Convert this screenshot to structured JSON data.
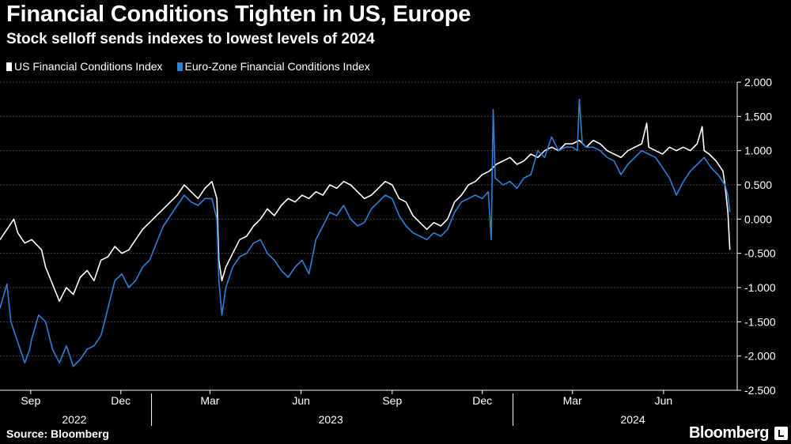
{
  "header": {
    "title": "Financial Conditions Tighten in US, Europe",
    "subtitle": "Stock selloff sends indexes to lowest levels of 2024"
  },
  "footer": {
    "source": "Source: Bloomberg",
    "brand": "Bloomberg"
  },
  "colors": {
    "background": "#000000",
    "us": "#ffffff",
    "eu": "#2e7fd8",
    "grid": "#444444"
  },
  "chart_data": {
    "type": "line",
    "title": "Financial Conditions Tighten in US, Europe",
    "subtitle": "Stock selloff sends indexes to lowest levels of 2024",
    "xlabel": "",
    "ylabel": "",
    "ylim": [
      -2.5,
      2.0
    ],
    "yticks": [
      "2.000",
      "1.500",
      "1.000",
      "0.500",
      "0.000",
      "-0.500",
      "-1.000",
      "-1.500",
      "-2.000",
      "-2.500"
    ],
    "ytick_values": [
      2.0,
      1.5,
      1.0,
      0.5,
      0.0,
      -0.5,
      -1.0,
      -1.5,
      -2.0,
      -2.5
    ],
    "xlim": [
      "2022-08-01",
      "2024-08-08"
    ],
    "month_ticks": [
      {
        "label": "Sep",
        "date": "2022-09-01"
      },
      {
        "label": "Dec",
        "date": "2022-12-01"
      },
      {
        "label": "Mar",
        "date": "2023-03-01"
      },
      {
        "label": "Jun",
        "date": "2023-06-01"
      },
      {
        "label": "Sep",
        "date": "2023-09-01"
      },
      {
        "label": "Dec",
        "date": "2023-12-01"
      },
      {
        "label": "Mar",
        "date": "2024-03-01"
      },
      {
        "label": "Jun",
        "date": "2024-06-01"
      }
    ],
    "year_labels": [
      {
        "label": "2022",
        "date": "2022-10-15"
      },
      {
        "label": "2023",
        "date": "2023-07-01"
      },
      {
        "label": "2024",
        "date": "2024-05-01"
      }
    ],
    "year_separators": [
      "2023-01-01",
      "2024-01-01"
    ],
    "legend_position": "top-left",
    "grid": true,
    "series": [
      {
        "name": "US Financial Conditions Index",
        "color": "#ffffff",
        "points": [
          [
            "2022-08-01",
            -0.3
          ],
          [
            "2022-08-08",
            -0.15
          ],
          [
            "2022-08-15",
            0.0
          ],
          [
            "2022-08-19",
            -0.2
          ],
          [
            "2022-08-26",
            -0.35
          ],
          [
            "2022-09-02",
            -0.3
          ],
          [
            "2022-09-12",
            -0.45
          ],
          [
            "2022-09-16",
            -0.7
          ],
          [
            "2022-09-23",
            -0.95
          ],
          [
            "2022-09-30",
            -1.2
          ],
          [
            "2022-10-07",
            -1.0
          ],
          [
            "2022-10-14",
            -1.1
          ],
          [
            "2022-10-21",
            -0.85
          ],
          [
            "2022-10-28",
            -0.75
          ],
          [
            "2022-11-04",
            -0.9
          ],
          [
            "2022-11-11",
            -0.6
          ],
          [
            "2022-11-18",
            -0.55
          ],
          [
            "2022-11-25",
            -0.4
          ],
          [
            "2022-12-02",
            -0.5
          ],
          [
            "2022-12-09",
            -0.45
          ],
          [
            "2022-12-16",
            -0.3
          ],
          [
            "2022-12-23",
            -0.15
          ],
          [
            "2022-12-30",
            -0.05
          ],
          [
            "2023-01-06",
            0.05
          ],
          [
            "2023-01-13",
            0.15
          ],
          [
            "2023-01-20",
            0.25
          ],
          [
            "2023-01-27",
            0.35
          ],
          [
            "2023-02-03",
            0.5
          ],
          [
            "2023-02-10",
            0.4
          ],
          [
            "2023-02-17",
            0.3
          ],
          [
            "2023-02-24",
            0.45
          ],
          [
            "2023-03-03",
            0.55
          ],
          [
            "2023-03-08",
            0.3
          ],
          [
            "2023-03-10",
            -0.6
          ],
          [
            "2023-03-13",
            -0.9
          ],
          [
            "2023-03-17",
            -0.7
          ],
          [
            "2023-03-24",
            -0.5
          ],
          [
            "2023-03-31",
            -0.3
          ],
          [
            "2023-04-07",
            -0.25
          ],
          [
            "2023-04-14",
            -0.1
          ],
          [
            "2023-04-21",
            0.0
          ],
          [
            "2023-04-28",
            0.15
          ],
          [
            "2023-05-05",
            0.05
          ],
          [
            "2023-05-12",
            0.2
          ],
          [
            "2023-05-19",
            0.3
          ],
          [
            "2023-05-26",
            0.25
          ],
          [
            "2023-06-02",
            0.35
          ],
          [
            "2023-06-09",
            0.3
          ],
          [
            "2023-06-16",
            0.4
          ],
          [
            "2023-06-23",
            0.35
          ],
          [
            "2023-06-30",
            0.5
          ],
          [
            "2023-07-07",
            0.45
          ],
          [
            "2023-07-14",
            0.55
          ],
          [
            "2023-07-21",
            0.5
          ],
          [
            "2023-07-28",
            0.4
          ],
          [
            "2023-08-04",
            0.3
          ],
          [
            "2023-08-11",
            0.35
          ],
          [
            "2023-08-18",
            0.45
          ],
          [
            "2023-08-25",
            0.55
          ],
          [
            "2023-09-01",
            0.5
          ],
          [
            "2023-09-08",
            0.3
          ],
          [
            "2023-09-15",
            0.25
          ],
          [
            "2023-09-22",
            0.05
          ],
          [
            "2023-09-29",
            -0.05
          ],
          [
            "2023-10-06",
            -0.15
          ],
          [
            "2023-10-13",
            -0.05
          ],
          [
            "2023-10-20",
            -0.1
          ],
          [
            "2023-10-27",
            0.0
          ],
          [
            "2023-11-03",
            0.25
          ],
          [
            "2023-11-10",
            0.35
          ],
          [
            "2023-11-17",
            0.5
          ],
          [
            "2023-11-24",
            0.55
          ],
          [
            "2023-12-01",
            0.65
          ],
          [
            "2023-12-08",
            0.7
          ],
          [
            "2023-12-15",
            0.8
          ],
          [
            "2023-12-22",
            0.85
          ],
          [
            "2023-12-29",
            0.9
          ],
          [
            "2024-01-05",
            0.8
          ],
          [
            "2024-01-12",
            0.85
          ],
          [
            "2024-01-19",
            0.95
          ],
          [
            "2024-01-26",
            0.9
          ],
          [
            "2024-02-02",
            1.0
          ],
          [
            "2024-02-09",
            1.05
          ],
          [
            "2024-02-16",
            1.0
          ],
          [
            "2024-02-23",
            1.1
          ],
          [
            "2024-03-01",
            1.1
          ],
          [
            "2024-03-08",
            1.15
          ],
          [
            "2024-03-15",
            1.05
          ],
          [
            "2024-03-22",
            1.15
          ],
          [
            "2024-03-29",
            1.1
          ],
          [
            "2024-04-05",
            1.0
          ],
          [
            "2024-04-12",
            0.95
          ],
          [
            "2024-04-19",
            0.9
          ],
          [
            "2024-04-26",
            1.0
          ],
          [
            "2024-05-03",
            1.05
          ],
          [
            "2024-05-10",
            1.1
          ],
          [
            "2024-05-15",
            1.4
          ],
          [
            "2024-05-17",
            1.05
          ],
          [
            "2024-05-24",
            1.0
          ],
          [
            "2024-05-31",
            0.95
          ],
          [
            "2024-06-07",
            1.05
          ],
          [
            "2024-06-14",
            1.0
          ],
          [
            "2024-06-21",
            1.05
          ],
          [
            "2024-06-28",
            1.0
          ],
          [
            "2024-07-05",
            1.1
          ],
          [
            "2024-07-10",
            1.35
          ],
          [
            "2024-07-12",
            1.0
          ],
          [
            "2024-07-17",
            0.95
          ],
          [
            "2024-07-24",
            0.85
          ],
          [
            "2024-07-31",
            0.7
          ],
          [
            "2024-08-02",
            0.5
          ],
          [
            "2024-08-05",
            0.1
          ],
          [
            "2024-08-07",
            -0.45
          ]
        ]
      },
      {
        "name": "Euro-Zone Financial Conditions Index",
        "color": "#2e7fd8",
        "points": [
          [
            "2022-08-01",
            -1.3
          ],
          [
            "2022-08-05",
            -1.1
          ],
          [
            "2022-08-08",
            -0.95
          ],
          [
            "2022-08-12",
            -1.5
          ],
          [
            "2022-08-19",
            -1.8
          ],
          [
            "2022-08-26",
            -2.1
          ],
          [
            "2022-08-31",
            -1.9
          ],
          [
            "2022-09-02",
            -1.75
          ],
          [
            "2022-09-09",
            -1.4
          ],
          [
            "2022-09-16",
            -1.5
          ],
          [
            "2022-09-23",
            -1.9
          ],
          [
            "2022-09-30",
            -2.1
          ],
          [
            "2022-10-07",
            -1.85
          ],
          [
            "2022-10-14",
            -2.15
          ],
          [
            "2022-10-21",
            -2.05
          ],
          [
            "2022-10-28",
            -1.9
          ],
          [
            "2022-11-04",
            -1.85
          ],
          [
            "2022-11-11",
            -1.7
          ],
          [
            "2022-11-18",
            -1.3
          ],
          [
            "2022-11-25",
            -0.9
          ],
          [
            "2022-12-02",
            -0.8
          ],
          [
            "2022-12-09",
            -1.0
          ],
          [
            "2022-12-16",
            -0.9
          ],
          [
            "2022-12-23",
            -0.7
          ],
          [
            "2022-12-30",
            -0.6
          ],
          [
            "2023-01-06",
            -0.35
          ],
          [
            "2023-01-13",
            -0.1
          ],
          [
            "2023-01-20",
            0.05
          ],
          [
            "2023-01-27",
            0.2
          ],
          [
            "2023-02-03",
            0.35
          ],
          [
            "2023-02-10",
            0.25
          ],
          [
            "2023-02-17",
            0.2
          ],
          [
            "2023-02-24",
            0.3
          ],
          [
            "2023-03-03",
            0.3
          ],
          [
            "2023-03-08",
            0.0
          ],
          [
            "2023-03-10",
            -0.9
          ],
          [
            "2023-03-13",
            -1.4
          ],
          [
            "2023-03-17",
            -1.0
          ],
          [
            "2023-03-24",
            -0.7
          ],
          [
            "2023-03-31",
            -0.55
          ],
          [
            "2023-04-07",
            -0.5
          ],
          [
            "2023-04-14",
            -0.35
          ],
          [
            "2023-04-21",
            -0.3
          ],
          [
            "2023-04-28",
            -0.5
          ],
          [
            "2023-05-05",
            -0.6
          ],
          [
            "2023-05-12",
            -0.75
          ],
          [
            "2023-05-19",
            -0.85
          ],
          [
            "2023-05-26",
            -0.7
          ],
          [
            "2023-06-02",
            -0.6
          ],
          [
            "2023-06-09",
            -0.8
          ],
          [
            "2023-06-16",
            -0.3
          ],
          [
            "2023-06-23",
            -0.1
          ],
          [
            "2023-06-30",
            0.1
          ],
          [
            "2023-07-07",
            0.05
          ],
          [
            "2023-07-14",
            0.2
          ],
          [
            "2023-07-21",
            0.0
          ],
          [
            "2023-07-28",
            -0.1
          ],
          [
            "2023-08-04",
            -0.05
          ],
          [
            "2023-08-11",
            0.15
          ],
          [
            "2023-08-18",
            0.25
          ],
          [
            "2023-08-25",
            0.35
          ],
          [
            "2023-09-01",
            0.3
          ],
          [
            "2023-09-08",
            0.05
          ],
          [
            "2023-09-15",
            -0.1
          ],
          [
            "2023-09-22",
            -0.2
          ],
          [
            "2023-09-29",
            -0.25
          ],
          [
            "2023-10-06",
            -0.3
          ],
          [
            "2023-10-13",
            -0.2
          ],
          [
            "2023-10-20",
            -0.25
          ],
          [
            "2023-10-27",
            -0.15
          ],
          [
            "2023-11-03",
            0.1
          ],
          [
            "2023-11-10",
            0.25
          ],
          [
            "2023-11-17",
            0.3
          ],
          [
            "2023-11-24",
            0.35
          ],
          [
            "2023-12-01",
            0.3
          ],
          [
            "2023-12-07",
            0.4
          ],
          [
            "2023-12-10",
            -0.3
          ],
          [
            "2023-12-12",
            1.6
          ],
          [
            "2023-12-14",
            0.6
          ],
          [
            "2023-12-22",
            0.5
          ],
          [
            "2023-12-29",
            0.55
          ],
          [
            "2024-01-05",
            0.45
          ],
          [
            "2024-01-12",
            0.6
          ],
          [
            "2024-01-19",
            0.65
          ],
          [
            "2024-01-26",
            1.0
          ],
          [
            "2024-02-02",
            0.9
          ],
          [
            "2024-02-09",
            1.2
          ],
          [
            "2024-02-16",
            1.0
          ],
          [
            "2024-02-23",
            1.05
          ],
          [
            "2024-03-01",
            1.05
          ],
          [
            "2024-03-06",
            1.0
          ],
          [
            "2024-03-08",
            1.75
          ],
          [
            "2024-03-11",
            1.1
          ],
          [
            "2024-03-15",
            1.05
          ],
          [
            "2024-03-22",
            1.05
          ],
          [
            "2024-03-29",
            1.0
          ],
          [
            "2024-04-05",
            0.9
          ],
          [
            "2024-04-12",
            0.85
          ],
          [
            "2024-04-19",
            0.65
          ],
          [
            "2024-04-26",
            0.8
          ],
          [
            "2024-05-03",
            0.9
          ],
          [
            "2024-05-10",
            1.0
          ],
          [
            "2024-05-17",
            0.95
          ],
          [
            "2024-05-24",
            0.9
          ],
          [
            "2024-05-31",
            0.75
          ],
          [
            "2024-06-07",
            0.6
          ],
          [
            "2024-06-14",
            0.35
          ],
          [
            "2024-06-21",
            0.55
          ],
          [
            "2024-06-28",
            0.7
          ],
          [
            "2024-07-05",
            0.8
          ],
          [
            "2024-07-12",
            0.9
          ],
          [
            "2024-07-19",
            0.75
          ],
          [
            "2024-07-26",
            0.65
          ],
          [
            "2024-08-02",
            0.5
          ],
          [
            "2024-08-05",
            0.35
          ],
          [
            "2024-08-07",
            0.1
          ]
        ]
      }
    ]
  }
}
